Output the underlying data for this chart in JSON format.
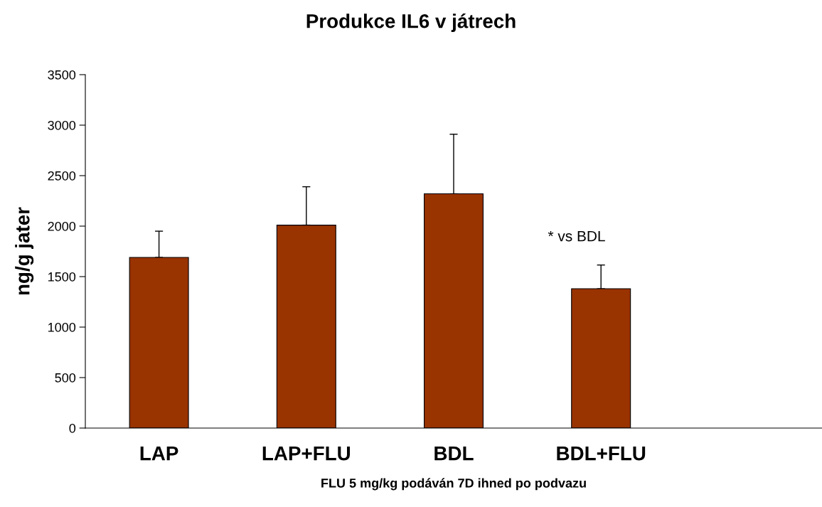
{
  "chart_data": {
    "type": "bar",
    "title": "Produkce IL6 v játrech",
    "xlabel": "FLU 5 mg/kg podáván 7D ihned po podvazu",
    "ylabel": "ng/g jater",
    "categories": [
      "LAP",
      "LAP+FLU",
      "BDL",
      "BDL+FLU",
      null
    ],
    "values": [
      1690,
      2010,
      2320,
      1380,
      null
    ],
    "errors": [
      [
        1690,
        1950
      ],
      [
        2010,
        2390
      ],
      [
        2320,
        2910
      ],
      [
        1380,
        1615
      ],
      null
    ],
    "color": "#993300",
    "ylim": [
      0,
      3500
    ],
    "yticks": [
      0,
      500,
      1000,
      1500,
      2000,
      2500,
      3000,
      3500
    ],
    "annotations": [
      "* vs BDL"
    ],
    "grid": false,
    "legend": false
  }
}
